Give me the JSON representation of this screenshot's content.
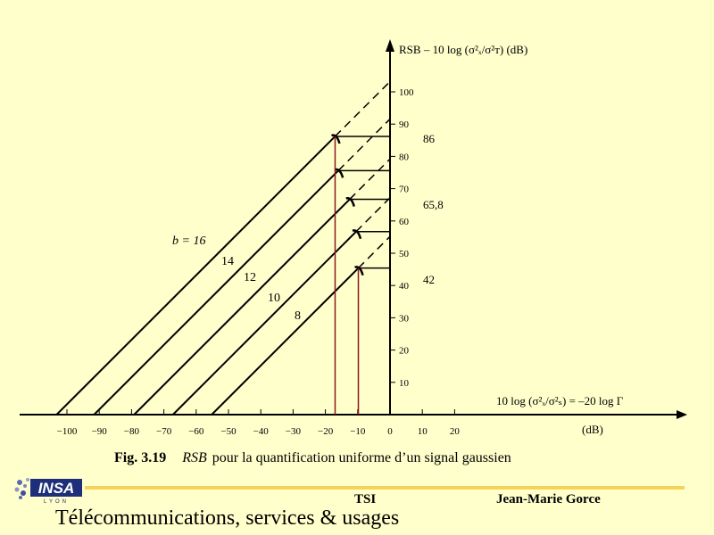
{
  "chart_data": {
    "type": "line",
    "y_axis_label": "RSB – 10 log (σ²ₓ/σ²ᴛ)  (dB)",
    "x_axis_label": "10 log (σ²ₓ/σ²ₛ) = –20 log Γ",
    "x_unit": "(dB)",
    "xlim": [
      -105,
      22
    ],
    "ylim": [
      0,
      100
    ],
    "x_ticks": [
      -100,
      -90,
      -80,
      -70,
      -60,
      -50,
      -40,
      -30,
      -20,
      -10,
      0,
      10,
      20
    ],
    "y_ticks": [
      10,
      20,
      30,
      40,
      50,
      60,
      70,
      80,
      90,
      100
    ],
    "series": [
      {
        "name": "b = 16",
        "x": [
          -103.2,
          -17,
          0
        ],
        "y": [
          0,
          86.2,
          103.2
        ],
        "peak": [
          -17,
          86.2
        ]
      },
      {
        "name": "14",
        "x": [
          -91.6,
          -16,
          0
        ],
        "y": [
          0,
          75.6,
          91.6
        ],
        "peak": [
          -16,
          75.6
        ]
      },
      {
        "name": "12",
        "x": [
          -79.2,
          -12.5,
          0
        ],
        "y": [
          0,
          66.7,
          79.2
        ],
        "peak": [
          -12.5,
          66.7
        ]
      },
      {
        "name": "10",
        "x": [
          -67.2,
          -10.5,
          0
        ],
        "y": [
          0,
          56.7,
          67.2
        ],
        "peak": [
          -10.5,
          56.7
        ]
      },
      {
        "name": "8",
        "x": [
          -55.2,
          -9.8,
          0
        ],
        "y": [
          0,
          45.4,
          55.2
        ],
        "peak": [
          -9.8,
          45.4
        ]
      }
    ],
    "annotations": [
      "86",
      "65,8",
      "42"
    ],
    "caption": {
      "fig": "Fig. 3.19",
      "rsb": "RSB",
      "text": "pour la quantification uniforme d’un signal gaussien"
    }
  },
  "footer": {
    "center": "TSI",
    "author": "Jean-Marie Gorce",
    "title": "Télécommunications, services & usages",
    "logo_text": "INSA",
    "logo_sub": "LYON"
  }
}
